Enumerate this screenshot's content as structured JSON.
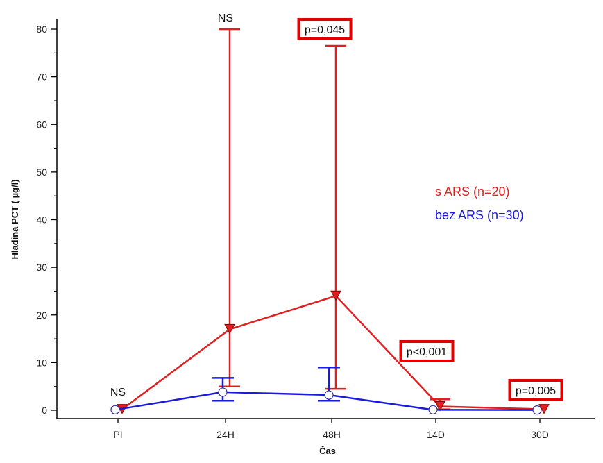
{
  "chart_data": {
    "type": "line",
    "xlabel": "Čas",
    "ylabel": "Hladina PCT ( µg/l)",
    "ylim": [
      0,
      80
    ],
    "yticks": [
      0,
      10,
      20,
      30,
      40,
      50,
      60,
      70,
      80
    ],
    "categories": [
      "PI",
      "24H",
      "48H",
      "14D",
      "30D"
    ],
    "grid": false,
    "legend_placement": "right",
    "series": [
      {
        "name": "s ARS (n=20)",
        "color": "#e02020",
        "marker": "triangle-down",
        "values": [
          0.2,
          17,
          24,
          0.8,
          0.2
        ],
        "error_low": [
          0.1,
          5,
          4.5,
          0.2,
          0.1
        ],
        "error_high": [
          0.3,
          80,
          76.5,
          2.3,
          0.3
        ]
      },
      {
        "name": "bez ARS (n=30)",
        "color": "#1a1adb",
        "marker": "circle",
        "values": [
          0.1,
          3.8,
          3.2,
          0.1,
          0.05
        ],
        "error_low": [
          0.05,
          2,
          2,
          0.05,
          0.02
        ],
        "error_high": [
          0.2,
          6.8,
          9,
          0.3,
          0.1
        ]
      }
    ],
    "annotations": [
      {
        "category": "PI",
        "text": "NS",
        "boxed": false
      },
      {
        "category": "24H",
        "text": "NS",
        "boxed": false
      },
      {
        "category": "48H",
        "text": "p=0,045",
        "boxed": true
      },
      {
        "category": "14D",
        "text": "p<0,001",
        "boxed": true
      },
      {
        "category": "30D",
        "text": "p=0,005",
        "boxed": true
      }
    ],
    "annotation_box_color": "#e00000"
  }
}
